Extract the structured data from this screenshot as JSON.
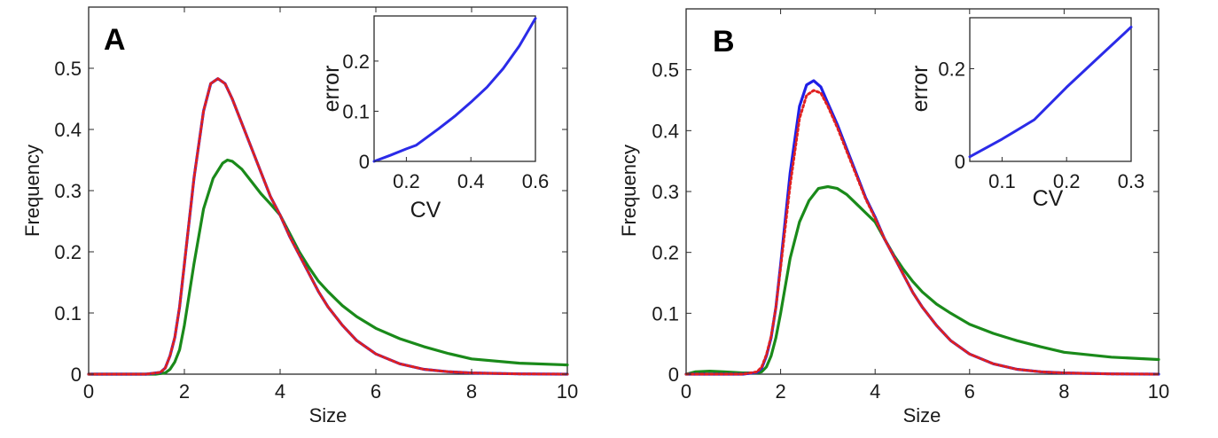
{
  "chart_data": [
    {
      "panel": "A",
      "type": "line",
      "xlabel": "Size",
      "ylabel": "Frequency",
      "xlim": [
        0,
        10
      ],
      "ylim": [
        0,
        0.6
      ],
      "xticks": [
        "0",
        "2",
        "4",
        "6",
        "8",
        "10"
      ],
      "yticks": [
        "0",
        "0.1",
        "0.2",
        "0.3",
        "0.4",
        "0.5"
      ],
      "series": [
        {
          "name": "blue",
          "color": "#1f1fe6",
          "style": "solid",
          "x": [
            0,
            1.2,
            1.5,
            1.6,
            1.7,
            1.8,
            1.9,
            2.0,
            2.2,
            2.4,
            2.55,
            2.7,
            2.85,
            3.0,
            3.2,
            3.4,
            3.6,
            3.8,
            4.0,
            4.2,
            4.5,
            4.8,
            5.0,
            5.3,
            5.6,
            6.0,
            6.5,
            7.0,
            7.5,
            8.0,
            9.0,
            10.0
          ],
          "y": [
            0,
            0,
            0.003,
            0.01,
            0.03,
            0.06,
            0.11,
            0.18,
            0.32,
            0.43,
            0.475,
            0.483,
            0.475,
            0.45,
            0.41,
            0.37,
            0.33,
            0.29,
            0.26,
            0.225,
            0.18,
            0.135,
            0.11,
            0.08,
            0.055,
            0.033,
            0.017,
            0.008,
            0.004,
            0.002,
            0.0005,
            0
          ]
        },
        {
          "name": "red",
          "color": "#e02020",
          "style": "dotted",
          "x": [
            0,
            1.2,
            1.5,
            1.6,
            1.7,
            1.8,
            1.9,
            2.0,
            2.2,
            2.4,
            2.55,
            2.7,
            2.85,
            3.0,
            3.2,
            3.4,
            3.6,
            3.8,
            4.0,
            4.2,
            4.5,
            4.8,
            5.0,
            5.3,
            5.6,
            6.0,
            6.5,
            7.0,
            7.5,
            8.0,
            9.0,
            10.0
          ],
          "y": [
            0,
            0,
            0.003,
            0.01,
            0.03,
            0.06,
            0.11,
            0.18,
            0.32,
            0.43,
            0.475,
            0.483,
            0.475,
            0.45,
            0.41,
            0.37,
            0.33,
            0.29,
            0.26,
            0.225,
            0.18,
            0.135,
            0.11,
            0.08,
            0.055,
            0.033,
            0.017,
            0.008,
            0.004,
            0.002,
            0.0005,
            0
          ]
        },
        {
          "name": "green",
          "color": "#1a8a1a",
          "style": "solid",
          "x": [
            0,
            1.4,
            1.6,
            1.7,
            1.8,
            1.9,
            2.0,
            2.2,
            2.4,
            2.6,
            2.8,
            2.9,
            3.0,
            3.2,
            3.4,
            3.6,
            3.8,
            4.0,
            4.2,
            4.4,
            4.6,
            4.8,
            5.0,
            5.3,
            5.6,
            6.0,
            6.5,
            7.0,
            7.5,
            8.0,
            9.0,
            10.0
          ],
          "y": [
            0,
            0,
            0.002,
            0.008,
            0.02,
            0.04,
            0.08,
            0.18,
            0.27,
            0.32,
            0.345,
            0.35,
            0.348,
            0.335,
            0.315,
            0.295,
            0.278,
            0.26,
            0.23,
            0.2,
            0.175,
            0.152,
            0.135,
            0.112,
            0.094,
            0.075,
            0.058,
            0.045,
            0.034,
            0.025,
            0.018,
            0.015
          ]
        }
      ],
      "inset": {
        "type": "line",
        "xlabel": "CV",
        "ylabel": "error",
        "xlim": [
          0.1,
          0.6
        ],
        "ylim": [
          0,
          0.29
        ],
        "xticks": [
          "0.2",
          "0.4",
          "0.6"
        ],
        "yticks": [
          "0",
          "0.1",
          "0.2"
        ],
        "color": "#2b2be8",
        "x": [
          0.1,
          0.15,
          0.2,
          0.23,
          0.3,
          0.35,
          0.4,
          0.45,
          0.5,
          0.55,
          0.6
        ],
        "y": [
          0.0,
          0.012,
          0.025,
          0.032,
          0.065,
          0.09,
          0.118,
          0.148,
          0.185,
          0.23,
          0.285
        ]
      }
    },
    {
      "panel": "B",
      "type": "line",
      "xlabel": "Size",
      "ylabel": "Frequency",
      "xlim": [
        0,
        10
      ],
      "ylim": [
        0,
        0.6
      ],
      "xticks": [
        "0",
        "2",
        "4",
        "6",
        "8",
        "10"
      ],
      "yticks": [
        "0",
        "0.1",
        "0.2",
        "0.3",
        "0.4",
        "0.5"
      ],
      "series": [
        {
          "name": "blue",
          "color": "#1f1fe6",
          "style": "solid",
          "x": [
            0,
            1.2,
            1.5,
            1.6,
            1.7,
            1.8,
            1.9,
            2.0,
            2.2,
            2.4,
            2.55,
            2.7,
            2.85,
            3.0,
            3.2,
            3.4,
            3.6,
            3.8,
            4.0,
            4.2,
            4.5,
            4.8,
            5.0,
            5.3,
            5.6,
            6.0,
            6.5,
            7.0,
            7.5,
            8.0,
            9.0,
            10.0
          ],
          "y": [
            0,
            0,
            0.003,
            0.01,
            0.03,
            0.06,
            0.11,
            0.18,
            0.33,
            0.44,
            0.475,
            0.482,
            0.472,
            0.445,
            0.41,
            0.37,
            0.33,
            0.29,
            0.258,
            0.222,
            0.178,
            0.134,
            0.11,
            0.08,
            0.055,
            0.033,
            0.017,
            0.008,
            0.004,
            0.002,
            0.0005,
            0
          ]
        },
        {
          "name": "red",
          "color": "#e02020",
          "style": "dotted",
          "x": [
            0,
            1.2,
            1.5,
            1.6,
            1.7,
            1.8,
            1.9,
            2.0,
            2.2,
            2.4,
            2.55,
            2.7,
            2.85,
            3.0,
            3.2,
            3.4,
            3.6,
            3.8,
            4.0,
            4.2,
            4.5,
            4.8,
            5.0,
            5.3,
            5.6,
            6.0,
            6.5,
            7.0,
            7.5,
            8.0,
            9.0,
            10.0
          ],
          "y": [
            0,
            0,
            0.004,
            0.012,
            0.032,
            0.062,
            0.11,
            0.175,
            0.31,
            0.42,
            0.458,
            0.466,
            0.462,
            0.44,
            0.405,
            0.366,
            0.327,
            0.288,
            0.256,
            0.222,
            0.178,
            0.134,
            0.11,
            0.08,
            0.055,
            0.033,
            0.017,
            0.008,
            0.004,
            0.002,
            0.0005,
            0
          ]
        },
        {
          "name": "green",
          "color": "#1a8a1a",
          "style": "solid",
          "x": [
            0,
            0.2,
            0.5,
            0.8,
            1.2,
            1.5,
            1.6,
            1.7,
            1.8,
            1.9,
            2.0,
            2.2,
            2.4,
            2.6,
            2.8,
            3.0,
            3.2,
            3.4,
            3.6,
            3.8,
            4.0,
            4.2,
            4.4,
            4.6,
            4.8,
            5.0,
            5.3,
            5.6,
            6.0,
            6.5,
            7.0,
            7.5,
            8.0,
            9.0,
            10.0
          ],
          "y": [
            0,
            0.004,
            0.005,
            0.004,
            0.002,
            0.002,
            0.004,
            0.012,
            0.03,
            0.06,
            0.1,
            0.19,
            0.25,
            0.285,
            0.305,
            0.308,
            0.305,
            0.295,
            0.28,
            0.265,
            0.25,
            0.222,
            0.195,
            0.172,
            0.152,
            0.135,
            0.115,
            0.1,
            0.082,
            0.067,
            0.055,
            0.045,
            0.036,
            0.028,
            0.024
          ]
        }
      ],
      "inset": {
        "type": "line",
        "xlabel": "CV",
        "ylabel": "error",
        "xlim": [
          0.05,
          0.3
        ],
        "ylim": [
          0,
          0.31
        ],
        "xticks": [
          "0.1",
          "0.2",
          "0.3"
        ],
        "yticks": [
          "0",
          "0.2"
        ],
        "color": "#2b2be8",
        "x": [
          0.05,
          0.1,
          0.15,
          0.2,
          0.25,
          0.3
        ],
        "y": [
          0.01,
          0.048,
          0.09,
          0.16,
          0.225,
          0.29
        ]
      }
    }
  ]
}
